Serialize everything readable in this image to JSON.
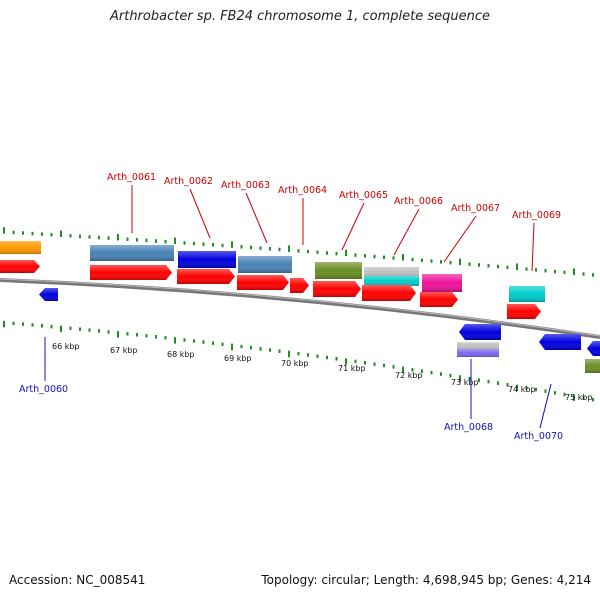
{
  "title": "Arthrobacter sp. FB24 chromosome 1, complete sequence",
  "footer": {
    "accession": "Accession: NC_008541",
    "summary": "Topology: circular; Length: 4,698,945 bp; Genes: 4,214"
  },
  "scale_labels": [
    "66 kbp",
    "67 kbp",
    "68 kbp",
    "69 kbp",
    "70 kbp",
    "71 kbp",
    "72 kbp",
    "73 kbp",
    "74 kbp",
    "75 kbp"
  ],
  "labels_top": [
    "Arth_0061",
    "Arth_0062",
    "Arth_0063",
    "Arth_0064",
    "Arth_0065",
    "Arth_0066",
    "Arth_0067",
    "Arth_0069"
  ],
  "labels_bottom": [
    "Arth_0060",
    "Arth_0068",
    "Arth_0070"
  ],
  "colors": {
    "label_top": "#cc0000",
    "label_bottom": "#1010c0",
    "tick": "#228b22",
    "axis": "#777777",
    "cds": "#ff0000",
    "gene_blue": "#0000e0",
    "steelblue": "#4682b4",
    "olive": "#6b8e23",
    "cyan": "#00cccc",
    "magenta": "#ee1199",
    "orange": "#ff9900",
    "slateblue": "#7b68ee",
    "silver": "#c0c0c0"
  }
}
